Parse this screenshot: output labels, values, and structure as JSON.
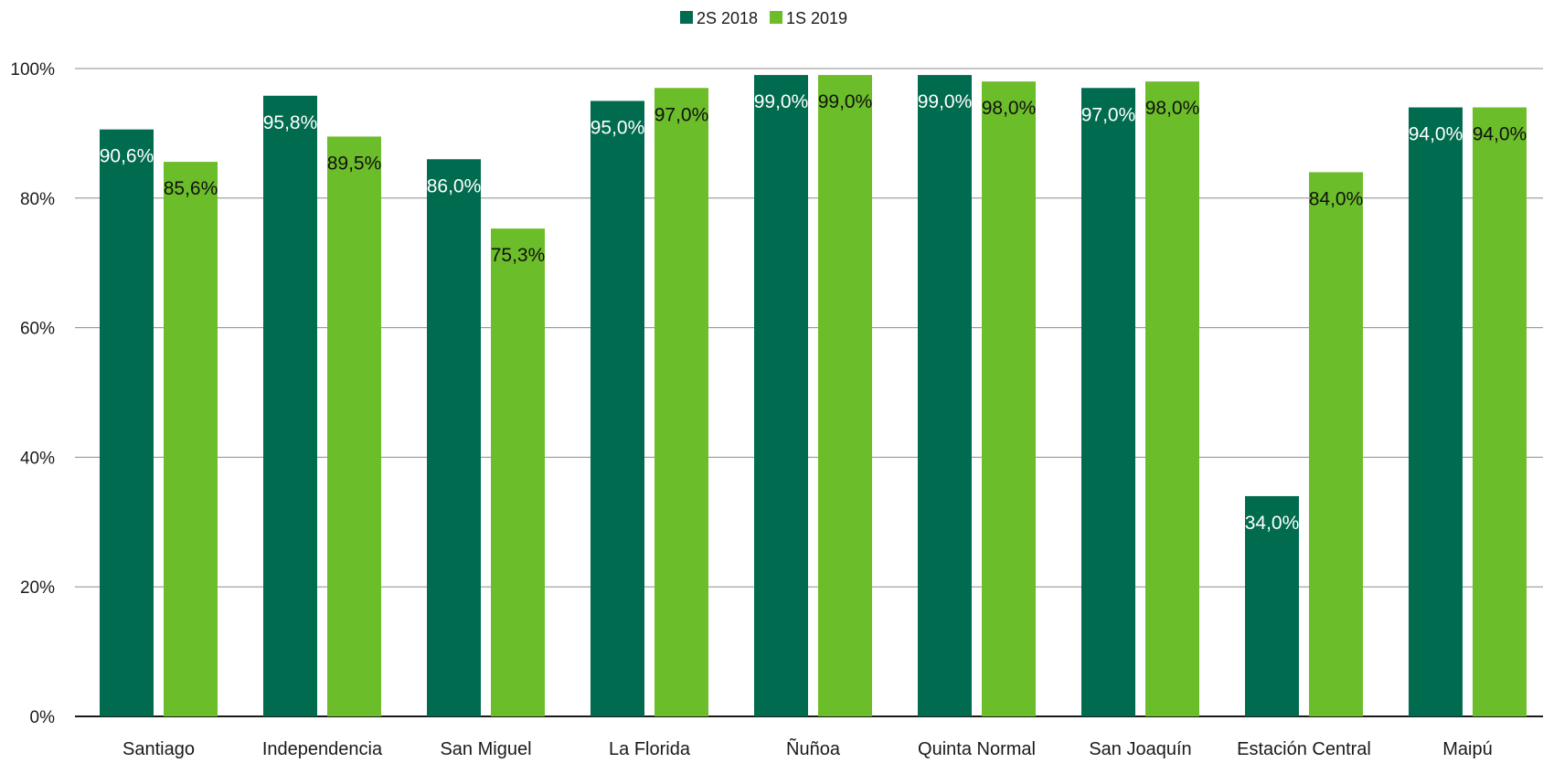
{
  "chart_data": {
    "type": "bar",
    "categories": [
      "Santiago",
      "Independencia",
      "San Miguel",
      "La Florida",
      "Ñuñoa",
      "Quinta Normal",
      "San Joaquín",
      "Estación Central",
      "Maipú"
    ],
    "series": [
      {
        "name": "2S 2018",
        "color": "#006b4e",
        "label_color": "#ffffff",
        "values": [
          90.6,
          95.8,
          86.0,
          95.0,
          99.0,
          99.0,
          97.0,
          34.0,
          94.0
        ],
        "labels": [
          "90,6%",
          "95,8%",
          "86,0%",
          "95,0%",
          "99,0%",
          "99,0%",
          "97,0%",
          "34,0%",
          "94,0%"
        ]
      },
      {
        "name": "1S 2019",
        "color": "#6cbd2a",
        "label_color": "#111111",
        "values": [
          85.6,
          89.5,
          75.3,
          97.0,
          99.0,
          98.0,
          98.0,
          84.0,
          94.0
        ],
        "labels": [
          "85,6%",
          "89,5%",
          "75,3%",
          "97,0%",
          "99,0%",
          "98,0%",
          "98,0%",
          "84,0%",
          "94,0%"
        ]
      }
    ],
    "yticks": [
      {
        "value": 0,
        "label": "0%"
      },
      {
        "value": 20,
        "label": "20%"
      },
      {
        "value": 40,
        "label": "40%"
      },
      {
        "value": 60,
        "label": "60%"
      },
      {
        "value": 80,
        "label": "80%"
      },
      {
        "value": 100,
        "label": "100%"
      }
    ],
    "ylim": [
      0,
      100
    ],
    "grid": true,
    "legend_position": "top-center"
  }
}
